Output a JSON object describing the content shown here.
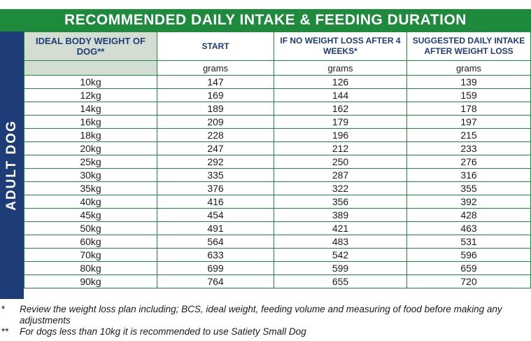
{
  "title": "RECOMMENDED DAILY INTAKE & FEEDING DURATION",
  "side_label": "ADULT DOG",
  "headers": {
    "weight": "IDEAL BODY WEIGHT OF DOG**",
    "start": "START",
    "no_loss": "IF NO WEIGHT LOSS AFTER 4 WEEKS*",
    "after": "SUGGESTED DAILY INTAKE AFTER WEIGHT LOSS"
  },
  "units": {
    "start": "grams",
    "no_loss": "grams",
    "after": "grams"
  },
  "rows": [
    {
      "weight": "10kg",
      "start": "147",
      "no_loss": "126",
      "after": "139"
    },
    {
      "weight": "12kg",
      "start": "169",
      "no_loss": "144",
      "after": "159"
    },
    {
      "weight": "14kg",
      "start": "189",
      "no_loss": "162",
      "after": "178"
    },
    {
      "weight": "16kg",
      "start": "209",
      "no_loss": "179",
      "after": "197"
    },
    {
      "weight": "18kg",
      "start": "228",
      "no_loss": "196",
      "after": "215"
    },
    {
      "weight": "20kg",
      "start": "247",
      "no_loss": "212",
      "after": "233"
    },
    {
      "weight": "25kg",
      "start": "292",
      "no_loss": "250",
      "after": "276"
    },
    {
      "weight": "30kg",
      "start": "335",
      "no_loss": "287",
      "after": "316"
    },
    {
      "weight": "35kg",
      "start": "376",
      "no_loss": "322",
      "after": "355"
    },
    {
      "weight": "40kg",
      "start": "416",
      "no_loss": "356",
      "after": "392"
    },
    {
      "weight": "45kg",
      "start": "454",
      "no_loss": "389",
      "after": "428"
    },
    {
      "weight": "50kg",
      "start": "491",
      "no_loss": "421",
      "after": "463"
    },
    {
      "weight": "60kg",
      "start": "564",
      "no_loss": "483",
      "after": "531"
    },
    {
      "weight": "70kg",
      "start": "633",
      "no_loss": "542",
      "after": "596"
    },
    {
      "weight": "80kg",
      "start": "699",
      "no_loss": "599",
      "after": "659"
    },
    {
      "weight": "90kg",
      "start": "764",
      "no_loss": "655",
      "after": "720"
    }
  ],
  "footnotes": [
    {
      "mark": "*",
      "text": "Review the weight loss plan including; BCS, ideal weight, feeding volume and measuring of food before making any adjustments"
    },
    {
      "mark": "**",
      "text": "For dogs less than 10kg it is recommended to use Satiety Small Dog"
    }
  ],
  "colors": {
    "title_bg": "#1e8a3c",
    "side_band": "#1d3c78",
    "weight_col_bg": "#d4ddd2",
    "grid": "#1e8a3c"
  }
}
